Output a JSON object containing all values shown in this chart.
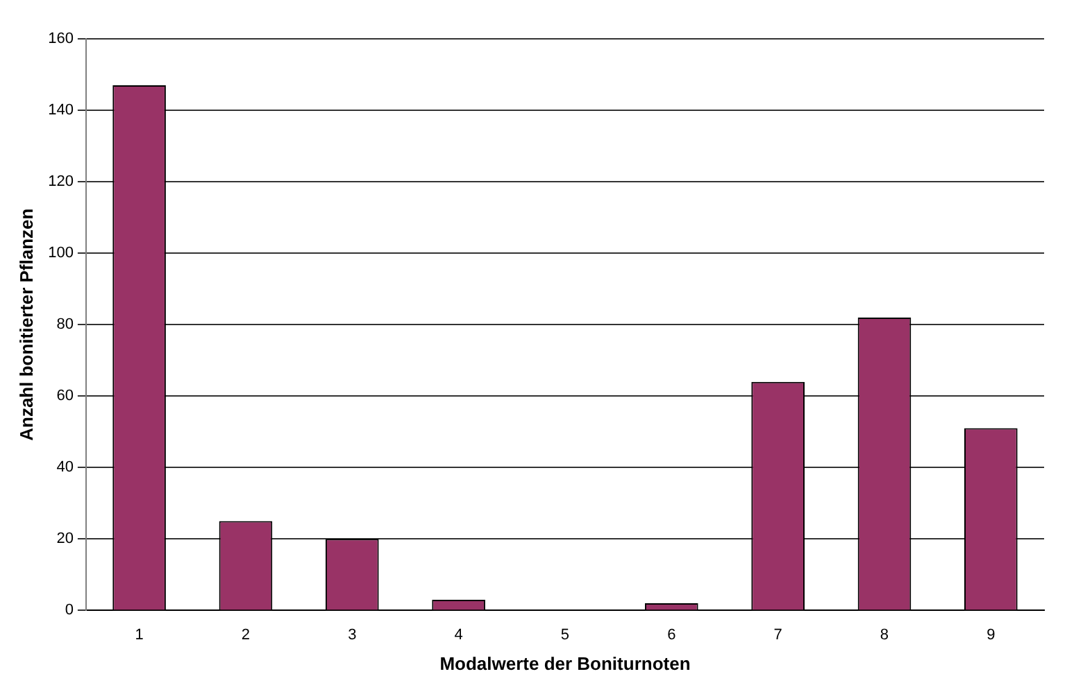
{
  "chart_data": {
    "type": "bar",
    "xlabel": "Modalwerte der Boniturnoten",
    "ylabel": "Anzahl bonitierter Pflanzen",
    "categories": [
      "1",
      "2",
      "3",
      "4",
      "5",
      "6",
      "7",
      "8",
      "9"
    ],
    "values": [
      147,
      25,
      20,
      3,
      0,
      2,
      64,
      82,
      51
    ],
    "color": "#993366",
    "ylim": [
      0,
      160
    ],
    "yticks": [
      0,
      20,
      40,
      60,
      80,
      100,
      120,
      140,
      160
    ],
    "grid": "y"
  }
}
